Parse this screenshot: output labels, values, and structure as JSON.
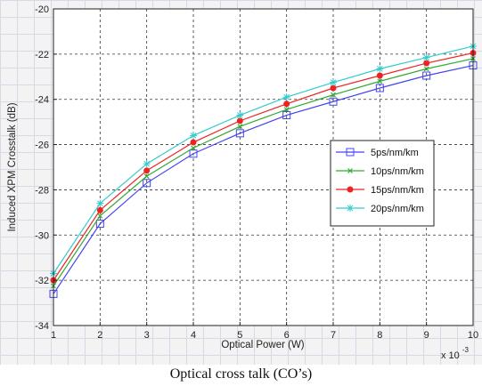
{
  "caption": "Optical cross talk (CO’s)",
  "chart_data": {
    "type": "line",
    "title": "",
    "xlabel": "Optical Power (W)",
    "ylabel": "Induced XPM Crosstalk (dB)",
    "x_multiplier_label": "x 10",
    "x_multiplier_exp": "-3",
    "x": [
      1,
      2,
      3,
      4,
      5,
      6,
      7,
      8,
      9,
      10
    ],
    "xlim": [
      1,
      10
    ],
    "ylim": [
      -34,
      -20
    ],
    "xticks": [
      1,
      2,
      3,
      4,
      5,
      6,
      7,
      8,
      9,
      10
    ],
    "yticks": [
      -20,
      -22,
      -24,
      -26,
      -28,
      -30,
      -32,
      -34
    ],
    "grid": "dashed",
    "legend_position": "right",
    "series": [
      {
        "name": "5ps/nm/km",
        "color": "#4444ee",
        "marker": "square",
        "values": [
          -32.6,
          -29.5,
          -27.7,
          -26.4,
          -25.5,
          -24.7,
          -24.1,
          -23.5,
          -22.95,
          -22.5
        ]
      },
      {
        "name": "10ps/nm/km",
        "color": "#33aa33",
        "marker": "x",
        "values": [
          -32.25,
          -29.15,
          -27.4,
          -26.15,
          -25.2,
          -24.45,
          -23.8,
          -23.2,
          -22.65,
          -22.2
        ]
      },
      {
        "name": "15ps/nm/km",
        "color": "#ee2222",
        "marker": "dot",
        "values": [
          -32.0,
          -28.9,
          -27.15,
          -25.9,
          -24.95,
          -24.2,
          -23.5,
          -22.95,
          -22.4,
          -21.95
        ]
      },
      {
        "name": "20ps/nm/km",
        "color": "#33cccc",
        "marker": "star",
        "values": [
          -31.7,
          -28.6,
          -26.85,
          -25.6,
          -24.7,
          -23.9,
          -23.25,
          -22.65,
          -22.15,
          -21.65
        ]
      }
    ]
  }
}
